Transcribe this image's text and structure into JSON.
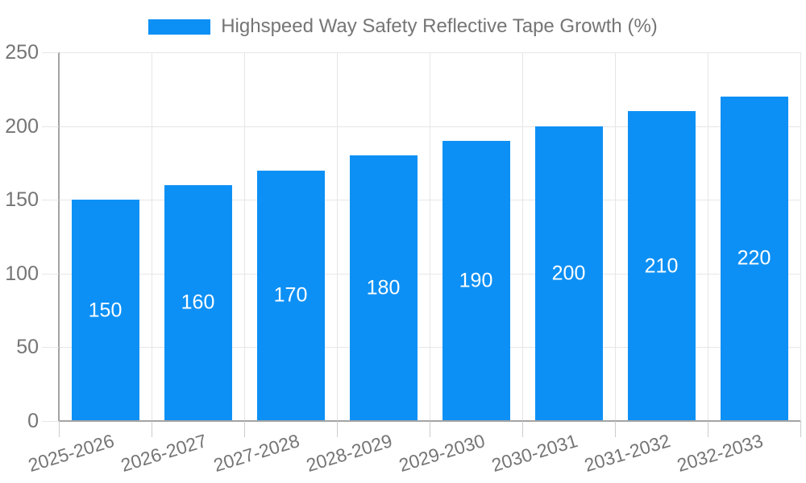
{
  "chart_data": {
    "type": "bar",
    "title": "Highspeed Way Safety Reflective Tape Growth (%)",
    "categories": [
      "2025-2026",
      "2026-2027",
      "2027-2028",
      "2028-2029",
      "2029-2030",
      "2030-2031",
      "2031-2032",
      "2032-2033"
    ],
    "values": [
      150,
      160,
      170,
      180,
      190,
      200,
      210,
      220
    ],
    "xlabel": "",
    "ylabel": "",
    "ylim": [
      0,
      250
    ],
    "yticks": [
      0,
      50,
      100,
      150,
      200,
      250
    ],
    "grid": true,
    "legend_position": "top",
    "value_labels_shown": true,
    "colors": {
      "bar": "#0d90f5",
      "legend_text": "#757575",
      "axis_text": "#757575",
      "grid_line": "#e6e6e6",
      "axis_line": "#a3a3a3",
      "tick": "#cccccc",
      "value_label": "#ffffff",
      "background": "#ffffff"
    }
  }
}
